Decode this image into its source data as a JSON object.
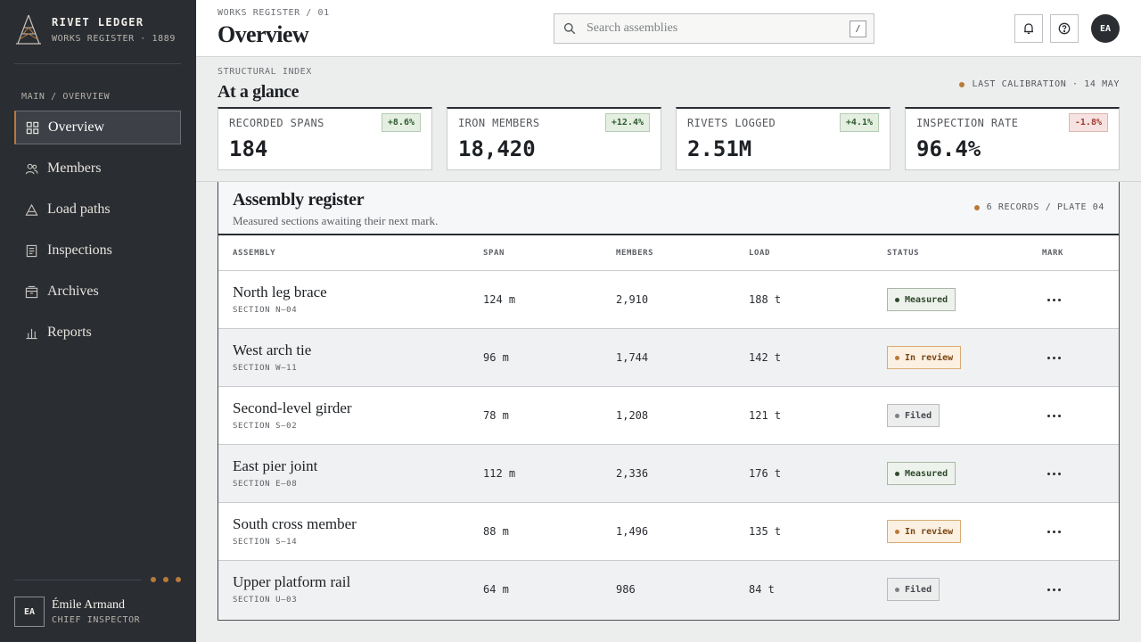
{
  "brand": {
    "title": "RIVET LEDGER",
    "subtitle": "WORKS REGISTER · 1889"
  },
  "nav": {
    "section_label": "MAIN / OVERVIEW",
    "items": [
      {
        "label": "Overview",
        "icon": "grid-icon",
        "active": true
      },
      {
        "label": "Members",
        "icon": "users-icon"
      },
      {
        "label": "Load paths",
        "icon": "triangle-icon"
      },
      {
        "label": "Inspections",
        "icon": "clipboard-icon"
      },
      {
        "label": "Archives",
        "icon": "archive-icon"
      },
      {
        "label": "Reports",
        "icon": "bar-chart-icon"
      }
    ]
  },
  "user": {
    "initials": "EA",
    "name": "Émile Armand",
    "role": "CHIEF INSPECTOR"
  },
  "header": {
    "breadcrumb": "WORKS REGISTER / 01",
    "title": "Overview",
    "search_placeholder": "Search assemblies",
    "search_shortcut": "/",
    "avatar_initials": "EA"
  },
  "glance": {
    "label": "STRUCTURAL INDEX",
    "title": "At a glance",
    "calibration": "LAST CALIBRATION · 14 MAY",
    "stats": [
      {
        "label": "RECORDED SPANS",
        "value": "184",
        "delta": "+8.6%",
        "trend": "up"
      },
      {
        "label": "IRON MEMBERS",
        "value": "18,420",
        "delta": "+12.4%",
        "trend": "up"
      },
      {
        "label": "RIVETS LOGGED",
        "value": "2.51M",
        "delta": "+4.1%",
        "trend": "up"
      },
      {
        "label": "INSPECTION RATE",
        "value": "96.4%",
        "delta": "-1.8%",
        "trend": "down"
      }
    ]
  },
  "register": {
    "title": "Assembly register",
    "subtitle": "Measured sections awaiting their next mark.",
    "records": "6 RECORDS / PLATE 04",
    "columns": {
      "assembly": "ASSEMBLY",
      "span": "SPAN",
      "members": "MEMBERS",
      "load": "LOAD",
      "status": "STATUS",
      "mark": "MARK"
    },
    "rows": [
      {
        "name": "North leg brace",
        "section": "SECTION N—04",
        "span": "124 m",
        "members": "2,910",
        "load": "188 t",
        "status": "Measured"
      },
      {
        "name": "West arch tie",
        "section": "SECTION W—11",
        "span": "96 m",
        "members": "1,744",
        "load": "142 t",
        "status": "In review"
      },
      {
        "name": "Second-level girder",
        "section": "SECTION S—02",
        "span": "78 m",
        "members": "1,208",
        "load": "121 t",
        "status": "Filed"
      },
      {
        "name": "East pier joint",
        "section": "SECTION E—08",
        "span": "112 m",
        "members": "2,336",
        "load": "176 t",
        "status": "Measured"
      },
      {
        "name": "South cross member",
        "section": "SECTION S—14",
        "span": "88 m",
        "members": "1,496",
        "load": "135 t",
        "status": "In review"
      },
      {
        "name": "Upper platform rail",
        "section": "SECTION U—03",
        "span": "64 m",
        "members": "986",
        "load": "84 t",
        "status": "Filed"
      }
    ]
  },
  "colors": {
    "accent": "#b87a3a",
    "sidebar": "#2a2d32",
    "positive": "#2f5b2e",
    "negative": "#a13b33"
  }
}
